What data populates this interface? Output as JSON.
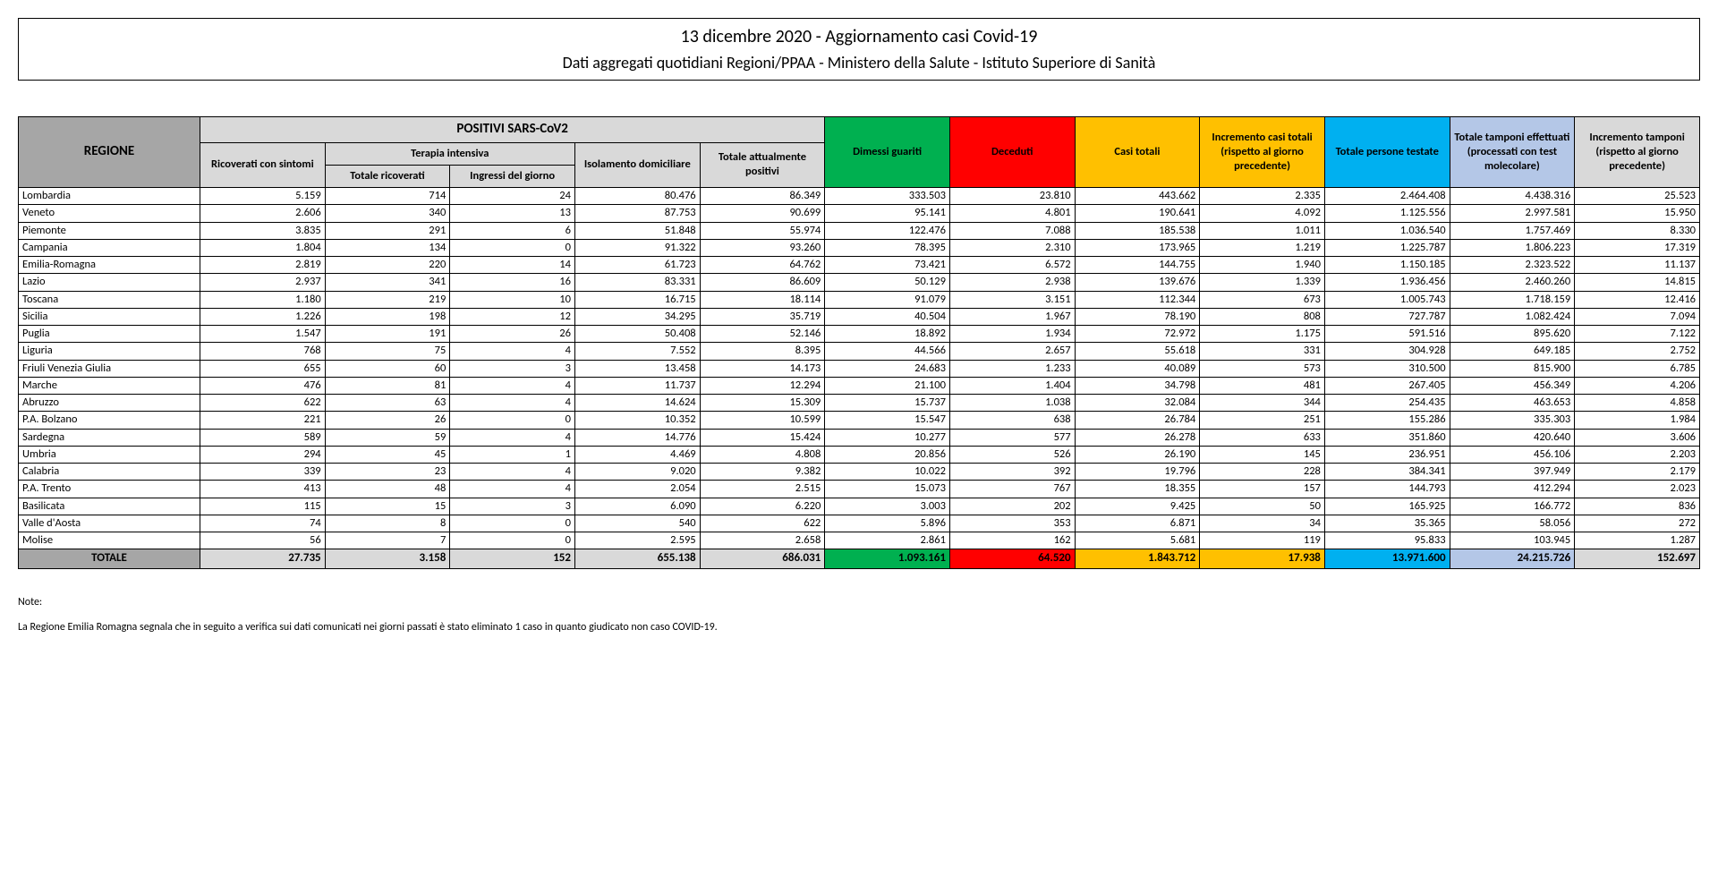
{
  "header": {
    "title": "13 dicembre 2020 - Aggiornamento casi Covid-19",
    "subtitle": "Dati aggregati quotidiani Regioni/PPAA - Ministero della Salute - Istituto Superiore di Sanità"
  },
  "table": {
    "head": {
      "region": "REGIONE",
      "positivi_group": "POSITIVI SARS-CoV2",
      "terapia_group": "Terapia intensiva",
      "cols": {
        "ric_sintomi": "Ricoverati con sintomi",
        "tot_ricoverati": "Totale ricoverati",
        "ingressi_giorno": "Ingressi del giorno",
        "isolamento": "Isolamento domiciliare",
        "tot_positivi": "Totale attualmente positivi",
        "dimessi": "Dimessi guariti",
        "deceduti": "Deceduti",
        "casi_totali": "Casi totali",
        "incremento_casi": "Incremento casi totali (rispetto al giorno precedente)",
        "persone_testate": "Totale persone testate",
        "tamponi": "Totale tamponi effettuati (processati con test molecolare)",
        "incr_tamponi": "Incremento tamponi (rispetto al giorno precedente)"
      }
    },
    "rows": [
      {
        "r": "Lombardia",
        "v": [
          "5.159",
          "714",
          "24",
          "80.476",
          "86.349",
          "333.503",
          "23.810",
          "443.662",
          "2.335",
          "2.464.408",
          "4.438.316",
          "25.523"
        ]
      },
      {
        "r": "Veneto",
        "v": [
          "2.606",
          "340",
          "13",
          "87.753",
          "90.699",
          "95.141",
          "4.801",
          "190.641",
          "4.092",
          "1.125.556",
          "2.997.581",
          "15.950"
        ]
      },
      {
        "r": "Piemonte",
        "v": [
          "3.835",
          "291",
          "6",
          "51.848",
          "55.974",
          "122.476",
          "7.088",
          "185.538",
          "1.011",
          "1.036.540",
          "1.757.469",
          "8.330"
        ]
      },
      {
        "r": "Campania",
        "v": [
          "1.804",
          "134",
          "0",
          "91.322",
          "93.260",
          "78.395",
          "2.310",
          "173.965",
          "1.219",
          "1.225.787",
          "1.806.223",
          "17.319"
        ]
      },
      {
        "r": "Emilia-Romagna",
        "v": [
          "2.819",
          "220",
          "14",
          "61.723",
          "64.762",
          "73.421",
          "6.572",
          "144.755",
          "1.940",
          "1.150.185",
          "2.323.522",
          "11.137"
        ]
      },
      {
        "r": "Lazio",
        "v": [
          "2.937",
          "341",
          "16",
          "83.331",
          "86.609",
          "50.129",
          "2.938",
          "139.676",
          "1.339",
          "1.936.456",
          "2.460.260",
          "14.815"
        ]
      },
      {
        "r": "Toscana",
        "v": [
          "1.180",
          "219",
          "10",
          "16.715",
          "18.114",
          "91.079",
          "3.151",
          "112.344",
          "673",
          "1.005.743",
          "1.718.159",
          "12.416"
        ]
      },
      {
        "r": "Sicilia",
        "v": [
          "1.226",
          "198",
          "12",
          "34.295",
          "35.719",
          "40.504",
          "1.967",
          "78.190",
          "808",
          "727.787",
          "1.082.424",
          "7.094"
        ]
      },
      {
        "r": "Puglia",
        "v": [
          "1.547",
          "191",
          "26",
          "50.408",
          "52.146",
          "18.892",
          "1.934",
          "72.972",
          "1.175",
          "591.516",
          "895.620",
          "7.122"
        ]
      },
      {
        "r": "Liguria",
        "v": [
          "768",
          "75",
          "4",
          "7.552",
          "8.395",
          "44.566",
          "2.657",
          "55.618",
          "331",
          "304.928",
          "649.185",
          "2.752"
        ]
      },
      {
        "r": "Friuli Venezia Giulia",
        "v": [
          "655",
          "60",
          "3",
          "13.458",
          "14.173",
          "24.683",
          "1.233",
          "40.089",
          "573",
          "310.500",
          "815.900",
          "6.785"
        ]
      },
      {
        "r": "Marche",
        "v": [
          "476",
          "81",
          "4",
          "11.737",
          "12.294",
          "21.100",
          "1.404",
          "34.798",
          "481",
          "267.405",
          "456.349",
          "4.206"
        ]
      },
      {
        "r": "Abruzzo",
        "v": [
          "622",
          "63",
          "4",
          "14.624",
          "15.309",
          "15.737",
          "1.038",
          "32.084",
          "344",
          "254.435",
          "463.653",
          "4.858"
        ]
      },
      {
        "r": "P.A. Bolzano",
        "v": [
          "221",
          "26",
          "0",
          "10.352",
          "10.599",
          "15.547",
          "638",
          "26.784",
          "251",
          "155.286",
          "335.303",
          "1.984"
        ]
      },
      {
        "r": "Sardegna",
        "v": [
          "589",
          "59",
          "4",
          "14.776",
          "15.424",
          "10.277",
          "577",
          "26.278",
          "633",
          "351.860",
          "420.640",
          "3.606"
        ]
      },
      {
        "r": "Umbria",
        "v": [
          "294",
          "45",
          "1",
          "4.469",
          "4.808",
          "20.856",
          "526",
          "26.190",
          "145",
          "236.951",
          "456.106",
          "2.203"
        ]
      },
      {
        "r": "Calabria",
        "v": [
          "339",
          "23",
          "4",
          "9.020",
          "9.382",
          "10.022",
          "392",
          "19.796",
          "228",
          "384.341",
          "397.949",
          "2.179"
        ]
      },
      {
        "r": "P.A. Trento",
        "v": [
          "413",
          "48",
          "4",
          "2.054",
          "2.515",
          "15.073",
          "767",
          "18.355",
          "157",
          "144.793",
          "412.294",
          "2.023"
        ]
      },
      {
        "r": "Basilicata",
        "v": [
          "115",
          "15",
          "3",
          "6.090",
          "6.220",
          "3.003",
          "202",
          "9.425",
          "50",
          "165.925",
          "166.772",
          "836"
        ]
      },
      {
        "r": "Valle d'Aosta",
        "v": [
          "74",
          "8",
          "0",
          "540",
          "622",
          "5.896",
          "353",
          "6.871",
          "34",
          "35.365",
          "58.056",
          "272"
        ]
      },
      {
        "r": "Molise",
        "v": [
          "56",
          "7",
          "0",
          "2.595",
          "2.658",
          "2.861",
          "162",
          "5.681",
          "119",
          "95.833",
          "103.945",
          "1.287"
        ]
      }
    ],
    "total_label": "TOTALE",
    "totals": [
      "27.735",
      "3.158",
      "152",
      "655.138",
      "686.031",
      "1.093.161",
      "64.520",
      "1.843.712",
      "17.938",
      "13.971.600",
      "24.215.726",
      "152.697"
    ]
  },
  "notes": {
    "label": "Note:",
    "text": "La Regione Emilia Romagna segnala che in seguito a verifica sui dati comunicati nei giorni passati è stato eliminato 1 caso in quanto giudicato non caso COVID-19."
  },
  "colors": {
    "green": "#00b050",
    "red": "#ff0000",
    "orange": "#ffc000",
    "blue": "#00b0f0",
    "lilac": "#b4c7e7",
    "grey": "#d9d9d9",
    "darkgrey": "#a6a6a6"
  }
}
